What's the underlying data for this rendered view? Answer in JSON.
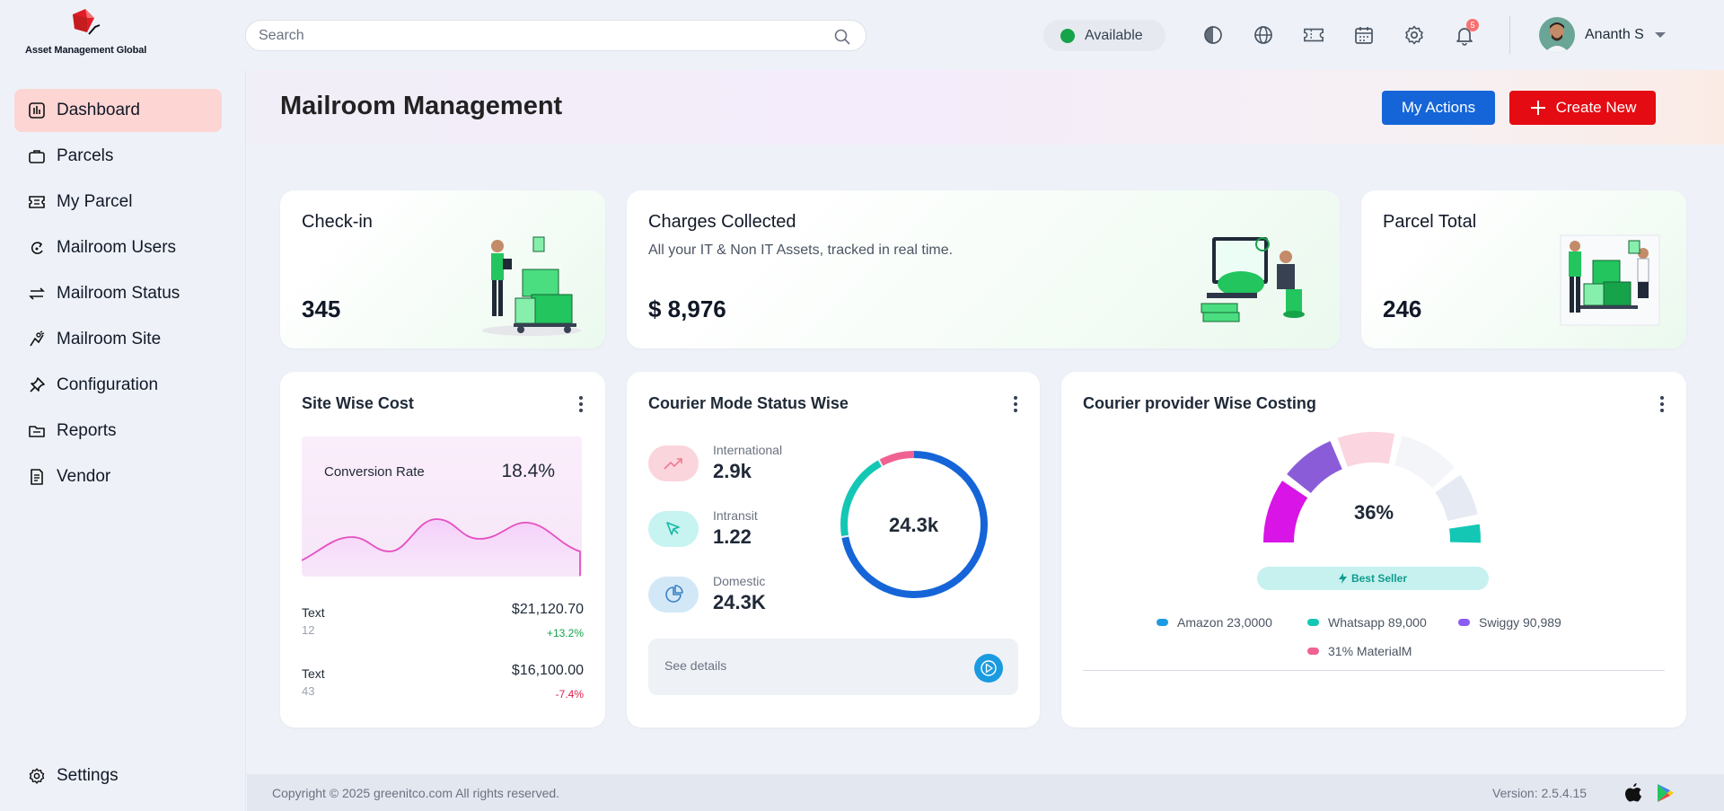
{
  "brand": {
    "name": "Asset Management Global"
  },
  "header": {
    "search_placeholder": "Search",
    "status": "Available",
    "notification_count": "5",
    "user_name": "Ananth S"
  },
  "sidebar": {
    "items": [
      {
        "label": "Dashboard",
        "icon": "dashboard-icon"
      },
      {
        "label": "Parcels",
        "icon": "briefcase-icon"
      },
      {
        "label": "My Parcel",
        "icon": "ticket-icon"
      },
      {
        "label": "Mailroom Users",
        "icon": "users-icon"
      },
      {
        "label": "Mailroom Status",
        "icon": "arrows-icon"
      },
      {
        "label": "Mailroom Site",
        "icon": "site-icon"
      },
      {
        "label": "Configuration",
        "icon": "pin-icon"
      },
      {
        "label": "Reports",
        "icon": "folder-icon"
      },
      {
        "label": "Vendor",
        "icon": "document-icon"
      }
    ],
    "settings_label": "Settings"
  },
  "page": {
    "title": "Mailroom Management",
    "my_actions": "My Actions",
    "create_new": "Create New"
  },
  "stats": {
    "checkin": {
      "title": "Check-in",
      "value": "345"
    },
    "charges": {
      "title": "Charges Collected",
      "subtitle": "All your IT & Non IT Assets, tracked in real time.",
      "value": "$ 8,976"
    },
    "parcel": {
      "title": "Parcel Total",
      "value": "246"
    }
  },
  "site_cost": {
    "title": "Site Wise Cost",
    "conversion_label": "Conversion Rate",
    "conversion_value": "18.4%",
    "rows": [
      {
        "label": "Text",
        "sub": "12",
        "value": "$21,120.70",
        "change": "+13.2%"
      },
      {
        "label": "Text",
        "sub": "43",
        "value": "$16,100.00",
        "change": "-7.4%"
      }
    ]
  },
  "courier_mode": {
    "title": "Courier Mode Status Wise",
    "items": [
      {
        "label": "International",
        "value": "2.9k"
      },
      {
        "label": "Intransit",
        "value": "1.22"
      },
      {
        "label": "Domestic",
        "value": "24.3K"
      }
    ],
    "total": "24.3k",
    "see_details": "See details"
  },
  "courier_provider": {
    "title": "Courier provider Wise Costing",
    "percent": "36%",
    "badge": "Best Seller",
    "legend": [
      {
        "label": "Amazon 23,0000",
        "color": "#1e9be0"
      },
      {
        "label": "Whatsapp 89,000",
        "color": "#14c7b5"
      },
      {
        "label": "Swiggy 90,989",
        "color": "#8b5cf6"
      },
      {
        "label": "31% MaterialM",
        "color": "#f06292"
      }
    ]
  },
  "footer": {
    "copyright": "Copyright © 2025 greenitco.com All rights reserved.",
    "version": "Version: 2.5.4.15"
  }
}
